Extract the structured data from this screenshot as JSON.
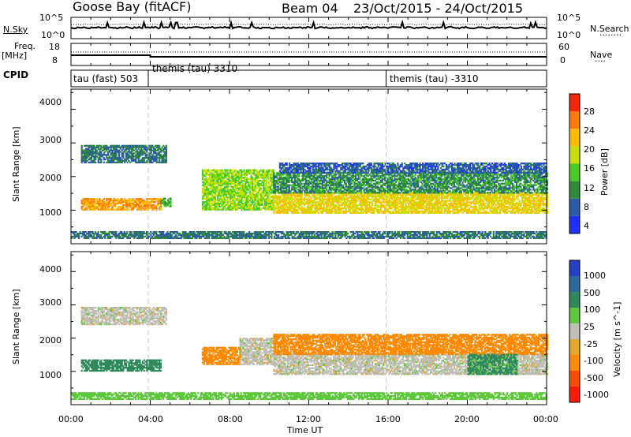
{
  "header": {
    "station": "Goose Bay (fitACF)",
    "beam": "Beam 04",
    "date_range": "23/Oct/2015 - 24/Oct/2015"
  },
  "noise_panel": {
    "left_label": "N.Sky",
    "right_label": "N.Search",
    "left_ticks": [
      "10^5",
      "10^0"
    ],
    "right_ticks": [
      "10^5",
      "10^0"
    ]
  },
  "freq_panel": {
    "left_label_1": "Freq.",
    "left_label_2": "[MHz]",
    "right_label": "Nave",
    "left_ticks": [
      "18",
      "8"
    ],
    "right_ticks": [
      "60",
      "0"
    ]
  },
  "cpid_panel": {
    "label": "CPID",
    "segments": [
      {
        "text": "tau (fast) 503",
        "start_hour": 0.0
      },
      {
        "text": "themis (tau) 3310",
        "start_hour": 3.9
      },
      {
        "text": "themis (tau) -3310",
        "start_hour": 15.9
      }
    ]
  },
  "time_axis": {
    "xlabel": "Time UT",
    "ticks": [
      "00:00",
      "04:00",
      "08:00",
      "12:00",
      "16:00",
      "20:00",
      "00:00"
    ]
  },
  "power_colorbar": {
    "label": "Power [dB]",
    "tick_labels": [
      "4",
      "8",
      "12",
      "16",
      "20",
      "24",
      "28"
    ],
    "colors": [
      "#1f2fff",
      "#2b5aa8",
      "#2e8b3a",
      "#46cc24",
      "#c8e000",
      "#ffbb00",
      "#ff7a00",
      "#ff2200"
    ]
  },
  "velocity_colorbar": {
    "label": "Velocity [m s^-1]",
    "tick_labels": [
      "1000",
      "500",
      "100",
      "25",
      "-25",
      "-100",
      "-500",
      "-1000"
    ],
    "colors": [
      "#2340c8",
      "#2b6aa0",
      "#2e8a5c",
      "#5dc83a",
      "#bfbfb6",
      "#e7a52a",
      "#ff8a00",
      "#ff4b00",
      "#ff1a00"
    ]
  },
  "chart_data": [
    {
      "type": "heatmap",
      "title": "Power",
      "xlabel": "",
      "ylabel": "Slant Range [km]",
      "xlim": [
        0,
        24
      ],
      "ylim": [
        0,
        4600
      ],
      "yticks": [
        "1000",
        "2000",
        "3000",
        "4000"
      ],
      "regions": [
        {
          "t": [
            0.5,
            4.5
          ],
          "r": [
            1000,
            1350
          ],
          "value": 24
        },
        {
          "t": [
            4.5,
            5.0
          ],
          "r": [
            1100,
            1350
          ],
          "value": 12
        },
        {
          "t": [
            0.5,
            4.8
          ],
          "r": [
            2400,
            2900
          ],
          "value": 8
        },
        {
          "t": [
            6.6,
            10.2
          ],
          "r": [
            1000,
            2200
          ],
          "value": 16
        },
        {
          "t": [
            10.2,
            24.0
          ],
          "r": [
            900,
            1500
          ],
          "value": 20
        },
        {
          "t": [
            10.2,
            24.0
          ],
          "r": [
            1500,
            2100
          ],
          "value": 10
        },
        {
          "t": [
            10.5,
            24.0
          ],
          "r": [
            2100,
            2400
          ],
          "value": 6
        },
        {
          "t": [
            0.0,
            24.0
          ],
          "r": [
            150,
            350
          ],
          "value": 8
        }
      ]
    },
    {
      "type": "heatmap",
      "title": "Velocity",
      "xlabel": "Time UT",
      "ylabel": "Slant Range [km]",
      "xlim": [
        0,
        24
      ],
      "ylim": [
        0,
        4600
      ],
      "yticks": [
        "1000",
        "2000",
        "3000",
        "4000"
      ],
      "regions": [
        {
          "t": [
            0.5,
            4.5
          ],
          "r": [
            1000,
            1350
          ],
          "value": 150
        },
        {
          "t": [
            0.5,
            4.8
          ],
          "r": [
            2400,
            2900
          ],
          "value": 0
        },
        {
          "t": [
            6.6,
            8.5
          ],
          "r": [
            1200,
            1700
          ],
          "value": -150
        },
        {
          "t": [
            8.5,
            10.2
          ],
          "r": [
            1200,
            2000
          ],
          "value": 0
        },
        {
          "t": [
            10.2,
            24.0
          ],
          "r": [
            900,
            1500
          ],
          "value": 0
        },
        {
          "t": [
            10.2,
            24.0
          ],
          "r": [
            1500,
            2100
          ],
          "value": -150
        },
        {
          "t": [
            20.0,
            22.5
          ],
          "r": [
            900,
            1500
          ],
          "value": 120
        },
        {
          "t": [
            0.0,
            24.0
          ],
          "r": [
            150,
            350
          ],
          "value": 60
        }
      ]
    }
  ]
}
